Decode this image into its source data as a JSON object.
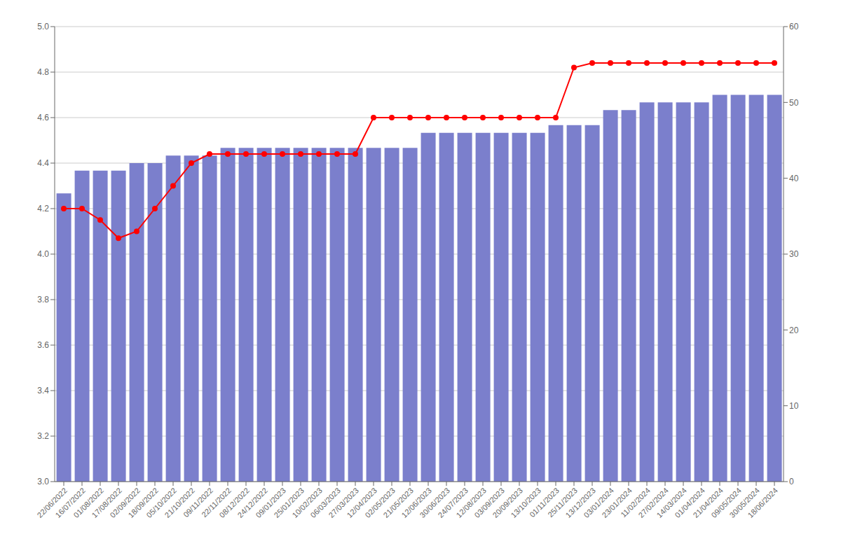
{
  "chart_data": {
    "type": "bar",
    "categories": [
      "22/06/2022",
      "16/07/2022",
      "01/08/2022",
      "17/08/2022",
      "02/09/2022",
      "18/09/2022",
      "05/10/2022",
      "21/10/2022",
      "09/11/2022",
      "22/11/2022",
      "08/12/2022",
      "24/12/2022",
      "09/01/2023",
      "25/01/2023",
      "10/02/2023",
      "06/03/2023",
      "27/03/2023",
      "12/04/2023",
      "02/05/2023",
      "21/05/2023",
      "12/06/2023",
      "30/06/2023",
      "24/07/2023",
      "12/08/2023",
      "03/09/2023",
      "20/09/2023",
      "13/10/2023",
      "01/11/2023",
      "25/11/2023",
      "13/12/2023",
      "03/01/2024",
      "23/01/2024",
      "11/02/2024",
      "27/02/2024",
      "14/03/2024",
      "01/04/2024",
      "21/04/2024",
      "09/05/2024",
      "30/05/2024",
      "18/06/2024"
    ],
    "series": [
      {
        "type": "bar",
        "color": "#7b7fcc",
        "axis": "y2",
        "values": [
          38,
          41,
          41,
          41,
          42,
          42,
          43,
          43,
          43,
          44,
          44,
          44,
          44,
          44,
          44,
          44,
          44,
          44,
          44,
          44,
          46,
          46,
          46,
          46,
          46,
          46,
          46,
          47,
          47,
          47,
          49,
          49,
          50,
          50,
          50,
          50,
          51,
          51,
          51,
          51
        ]
      },
      {
        "type": "line",
        "color": "#ff0000",
        "marker": "circle",
        "values": [
          4.2,
          4.2,
          4.15,
          4.07,
          4.1,
          4.2,
          4.3,
          4.4,
          4.44,
          4.44,
          4.44,
          4.44,
          4.44,
          4.44,
          4.44,
          4.44,
          4.44,
          4.6,
          4.6,
          4.6,
          4.6,
          4.6,
          4.6,
          4.6,
          4.6,
          4.6,
          4.6,
          4.6,
          4.82,
          4.84,
          4.84,
          4.84,
          4.84,
          4.84,
          4.84,
          4.84,
          4.84,
          4.84,
          4.84,
          4.84
        ]
      }
    ],
    "ylim": [
      3.0,
      5.0
    ],
    "yticks": [
      {
        "value": 3.0,
        "label": "3.0"
      },
      3.2,
      3.4,
      3.6,
      3.8,
      {
        "value": 4.0,
        "label": "4.0"
      },
      4.2,
      4.4,
      4.6,
      4.8,
      {
        "value": 5.0,
        "label": "5.0"
      }
    ],
    "y2lim": [
      0,
      60
    ],
    "y2ticks": [
      0,
      10,
      20,
      30,
      40,
      50,
      60
    ],
    "grid": true
  }
}
